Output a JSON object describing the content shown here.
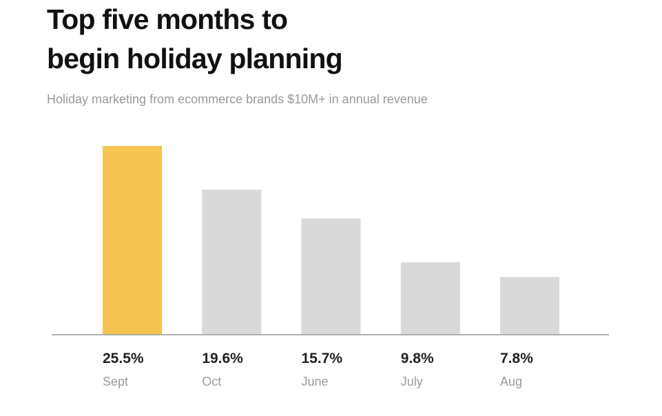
{
  "title_lines": [
    "Top five months to",
    "begin holiday planning"
  ],
  "subtitle": "Holiday marketing from ecommerce brands $10M+ in annual revenue",
  "colors": {
    "highlight": "#F4C350",
    "bar": "#D9D9D9",
    "axis": "#999999",
    "value_text": "#222222",
    "category_text": "#9A9A9A"
  },
  "chart_data": {
    "type": "bar",
    "title": "Top five months to begin holiday planning",
    "subtitle": "Holiday marketing from ecommerce brands $10M+ in annual revenue",
    "categories": [
      "Sept",
      "Oct",
      "June",
      "July",
      "Aug"
    ],
    "values": [
      25.5,
      19.6,
      15.7,
      9.8,
      7.8
    ],
    "value_labels": [
      "25.5%",
      "19.6%",
      "15.7%",
      "9.8%",
      "7.8%"
    ],
    "highlight_index": 0,
    "unit": "%",
    "ylim": [
      0,
      25.5
    ],
    "grid": false,
    "legend": "none"
  }
}
